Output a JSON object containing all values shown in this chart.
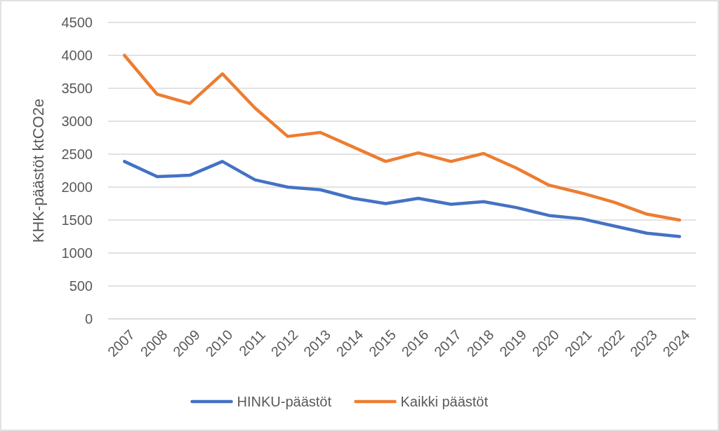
{
  "chart_data": {
    "type": "line",
    "ylabel": "KHK-päästöt ktCO2e",
    "categories": [
      "2007",
      "2008",
      "2009",
      "2010",
      "2011",
      "2012",
      "2013",
      "2014",
      "2015",
      "2016",
      "2017",
      "2018",
      "2019",
      "2020",
      "2021",
      "2022",
      "2023",
      "2024"
    ],
    "series": [
      {
        "name": "HINKU-päästöt",
        "color": "#4472c4",
        "values": [
          2390,
          2160,
          2180,
          2390,
          2110,
          2000,
          1960,
          1830,
          1750,
          1830,
          1740,
          1780,
          1690,
          1570,
          1520,
          1410,
          1300,
          1250
        ]
      },
      {
        "name": "Kaikki päästöt",
        "color": "#ed7d31",
        "values": [
          4000,
          3410,
          3270,
          3720,
          3200,
          2770,
          2830,
          2610,
          2390,
          2520,
          2390,
          2510,
          2290,
          2030,
          1910,
          1770,
          1590,
          1500
        ]
      }
    ],
    "ylim": [
      0,
      4500
    ],
    "yticks": [
      0,
      500,
      1000,
      1500,
      2000,
      2500,
      3000,
      3500,
      4000,
      4500
    ],
    "grid": "y",
    "legend": "bottom",
    "marker": "none",
    "line_style": "solid"
  }
}
